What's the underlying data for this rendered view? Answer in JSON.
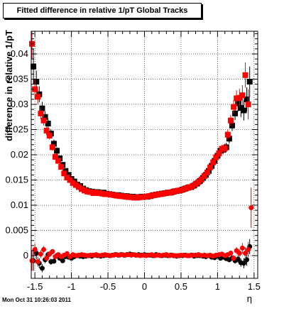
{
  "page": {
    "timestamp": "Mon Oct 31 10:26:03 2011"
  },
  "chart_data": {
    "type": "scatter",
    "title": "Fitted difference in relative 1/pT  Global Tracks",
    "xlabel": "η",
    "ylabel": "difference in relative 1/pT",
    "xlim": [
      -1.55,
      1.55
    ],
    "ylim": [
      -0.0045,
      0.0445
    ],
    "grid": true,
    "x_ticks": [
      {
        "value": -1.5,
        "label": "-1.5"
      },
      {
        "value": -1.0,
        "label": "-1"
      },
      {
        "value": -0.5,
        "label": "-0.5"
      },
      {
        "value": 0.0,
        "label": "0"
      },
      {
        "value": 0.5,
        "label": "0.5"
      },
      {
        "value": 1.0,
        "label": "1"
      },
      {
        "value": 1.5,
        "label": "1.5"
      }
    ],
    "y_ticks": [
      {
        "value": 0.0,
        "label": "0"
      },
      {
        "value": 0.005,
        "label": "0.005"
      },
      {
        "value": 0.01,
        "label": "0.01"
      },
      {
        "value": 0.015,
        "label": "0.015"
      },
      {
        "value": 0.02,
        "label": "0.02"
      },
      {
        "value": 0.025,
        "label": "0.025"
      },
      {
        "value": 0.03,
        "label": "0.03"
      },
      {
        "value": 0.035,
        "label": "0.035"
      },
      {
        "value": 0.04,
        "label": "0.04"
      }
    ],
    "colors": {
      "black_series": "#000000",
      "red_series": "#ff0000"
    },
    "series": [
      {
        "marker": "square",
        "color": "#000000",
        "x": [
          -1.52,
          -1.48,
          -1.44,
          -1.4,
          -1.36,
          -1.32,
          -1.28,
          -1.24,
          -1.2,
          -1.16,
          -1.12,
          -1.08,
          -1.04,
          -1.0,
          -0.96,
          -0.92,
          -0.88,
          -0.84,
          -0.8,
          -0.76,
          -0.72,
          -0.68,
          -0.64,
          -0.6,
          -0.56,
          -0.52,
          -0.48,
          -0.44,
          -0.4,
          -0.36,
          -0.32,
          -0.28,
          -0.24,
          -0.2,
          -0.16,
          -0.12,
          -0.08,
          -0.04,
          0.0,
          0.04,
          0.08,
          0.12,
          0.16,
          0.2,
          0.24,
          0.28,
          0.32,
          0.36,
          0.4,
          0.44,
          0.48,
          0.52,
          0.56,
          0.6,
          0.64,
          0.68,
          0.72,
          0.76,
          0.8,
          0.84,
          0.88,
          0.92,
          0.96,
          1.0,
          1.04,
          1.08,
          1.12,
          1.16,
          1.2,
          1.24,
          1.28,
          1.32,
          1.36,
          1.4,
          1.44
        ],
        "y": [
          0.0375,
          0.0345,
          0.032,
          0.0292,
          0.0275,
          0.0262,
          0.0242,
          0.0222,
          0.0208,
          0.0193,
          0.018,
          0.0168,
          0.016,
          0.0152,
          0.0147,
          0.0141,
          0.0138,
          0.0133,
          0.013,
          0.0128,
          0.0127,
          0.0126,
          0.0126,
          0.0124,
          0.0125,
          0.0123,
          0.0122,
          0.0121,
          0.012,
          0.012,
          0.0119,
          0.0118,
          0.0118,
          0.0117,
          0.0117,
          0.0116,
          0.0116,
          0.0117,
          0.0117,
          0.0117,
          0.0118,
          0.012,
          0.0121,
          0.0122,
          0.0123,
          0.0124,
          0.0125,
          0.0125,
          0.0127,
          0.0128,
          0.0129,
          0.0131,
          0.0133,
          0.0135,
          0.0136,
          0.0139,
          0.0143,
          0.0148,
          0.0154,
          0.016,
          0.0168,
          0.0178,
          0.0188,
          0.0198,
          0.0208,
          0.021,
          0.0215,
          0.0232,
          0.0258,
          0.0282,
          0.0302,
          0.0293,
          0.0288,
          0.031,
          0.0345
        ],
        "err": [
          0.0035,
          0.0022,
          0.0016,
          0.0013,
          0.0011,
          0.001,
          0.0009,
          0.0008,
          0.0007,
          0.0006,
          0.0005,
          0.0005,
          0.0004,
          0.0004,
          0.0004,
          0.0003,
          0.0003,
          0.0003,
          0.0003,
          0.0003,
          0.0003,
          0.0003,
          0.0003,
          0.0003,
          0.0003,
          0.0003,
          0.0003,
          0.0003,
          0.0003,
          0.0003,
          0.0003,
          0.0003,
          0.0003,
          0.0003,
          0.0003,
          0.0003,
          0.0003,
          0.0003,
          0.0003,
          0.0003,
          0.0003,
          0.0003,
          0.0003,
          0.0003,
          0.0003,
          0.0003,
          0.0003,
          0.0003,
          0.0003,
          0.0003,
          0.0003,
          0.0003,
          0.0003,
          0.0003,
          0.0003,
          0.0003,
          0.0003,
          0.0003,
          0.0004,
          0.0004,
          0.0004,
          0.0005,
          0.0005,
          0.0006,
          0.0007,
          0.0008,
          0.0009,
          0.001,
          0.0011,
          0.0013,
          0.0016,
          0.0018,
          0.002,
          0.0024,
          0.003
        ]
      },
      {
        "marker": "square",
        "color": "#ff0000",
        "x": [
          -1.54,
          -1.5,
          -1.46,
          -1.42,
          -1.38,
          -1.34,
          -1.3,
          -1.26,
          -1.22,
          -1.18,
          -1.14,
          -1.1,
          -1.06,
          -1.02,
          -0.98,
          -0.94,
          -0.9,
          -0.86,
          -0.82,
          -0.78,
          -0.74,
          -0.7,
          -0.66,
          -0.62,
          -0.58,
          -0.54,
          -0.5,
          -0.46,
          -0.42,
          -0.38,
          -0.34,
          -0.3,
          -0.26,
          -0.22,
          -0.18,
          -0.14,
          -0.1,
          -0.06,
          -0.02,
          0.02,
          0.06,
          0.1,
          0.14,
          0.18,
          0.22,
          0.26,
          0.3,
          0.34,
          0.38,
          0.42,
          0.46,
          0.5,
          0.54,
          0.58,
          0.62,
          0.66,
          0.7,
          0.74,
          0.78,
          0.82,
          0.86,
          0.9,
          0.94,
          0.98,
          1.02,
          1.06,
          1.1,
          1.14,
          1.18,
          1.22,
          1.26,
          1.3,
          1.34,
          1.38,
          1.42
        ],
        "y": [
          0.042,
          0.033,
          0.0315,
          0.0282,
          0.0268,
          0.0248,
          0.0238,
          0.0215,
          0.0196,
          0.0188,
          0.0176,
          0.0163,
          0.0155,
          0.015,
          0.0144,
          0.014,
          0.0136,
          0.0132,
          0.0129,
          0.0127,
          0.0126,
          0.0124,
          0.0125,
          0.0124,
          0.0123,
          0.0122,
          0.0122,
          0.0121,
          0.012,
          0.0119,
          0.0118,
          0.0118,
          0.0117,
          0.0116,
          0.0116,
          0.0115,
          0.0115,
          0.0116,
          0.0116,
          0.0117,
          0.0118,
          0.0119,
          0.012,
          0.0121,
          0.0122,
          0.0123,
          0.0124,
          0.0125,
          0.0126,
          0.0128,
          0.0129,
          0.013,
          0.0132,
          0.0134,
          0.0136,
          0.0138,
          0.0142,
          0.0146,
          0.0151,
          0.0158,
          0.0165,
          0.0175,
          0.0185,
          0.0195,
          0.0203,
          0.0212,
          0.0213,
          0.024,
          0.0268,
          0.0295,
          0.0312,
          0.0313,
          0.0318,
          0.0358,
          0.03
        ],
        "err": [
          0.003,
          0.002,
          0.0015,
          0.0012,
          0.001,
          0.0009,
          0.0008,
          0.0007,
          0.0006,
          0.0006,
          0.0005,
          0.0005,
          0.0004,
          0.0004,
          0.0004,
          0.0003,
          0.0003,
          0.0003,
          0.0003,
          0.0003,
          0.0003,
          0.0003,
          0.0003,
          0.0003,
          0.0003,
          0.0003,
          0.0003,
          0.0003,
          0.0003,
          0.0003,
          0.0003,
          0.0003,
          0.0003,
          0.0003,
          0.0003,
          0.0003,
          0.0003,
          0.0003,
          0.0003,
          0.0003,
          0.0003,
          0.0003,
          0.0003,
          0.0003,
          0.0003,
          0.0003,
          0.0003,
          0.0003,
          0.0003,
          0.0003,
          0.0003,
          0.0003,
          0.0003,
          0.0003,
          0.0003,
          0.0003,
          0.0003,
          0.0003,
          0.0004,
          0.0004,
          0.0004,
          0.0005,
          0.0005,
          0.0006,
          0.0007,
          0.0008,
          0.0009,
          0.001,
          0.0011,
          0.0013,
          0.0016,
          0.0018,
          0.002,
          0.0025,
          0.003
        ]
      },
      {
        "marker": "circle",
        "color": "#000000",
        "x": [
          -1.52,
          -1.48,
          -1.44,
          -1.4,
          -1.36,
          -1.32,
          -1.28,
          -1.24,
          -1.2,
          -1.16,
          -1.12,
          -1.08,
          -1.04,
          -1.0,
          -0.96,
          -0.92,
          -0.88,
          -0.84,
          -0.8,
          -0.76,
          -0.72,
          -0.68,
          -0.64,
          -0.6,
          -0.56,
          -0.52,
          -0.48,
          -0.44,
          -0.4,
          -0.36,
          -0.32,
          -0.28,
          -0.24,
          -0.2,
          -0.16,
          -0.12,
          -0.08,
          -0.04,
          0.0,
          0.04,
          0.08,
          0.12,
          0.16,
          0.2,
          0.24,
          0.28,
          0.32,
          0.36,
          0.4,
          0.44,
          0.48,
          0.52,
          0.56,
          0.6,
          0.64,
          0.68,
          0.72,
          0.76,
          0.8,
          0.84,
          0.88,
          0.92,
          0.96,
          1.0,
          1.04,
          1.08,
          1.12,
          1.16,
          1.2,
          1.24,
          1.28,
          1.32,
          1.36,
          1.4,
          1.44
        ],
        "y": [
          -0.001,
          0.0005,
          -0.0015,
          -0.0025,
          -0.0008,
          0.0002,
          -0.0012,
          -0.0011,
          0.0,
          -0.0005,
          -0.001,
          -0.0002,
          -0.0003,
          -0.0005,
          -0.0002,
          0.0,
          -0.0001,
          -0.0002,
          -0.0001,
          0.0,
          -0.0001,
          0.0001,
          0.0,
          -0.0001,
          0.0,
          0.0001,
          0.0,
          0.0001,
          0.0002,
          0.0001,
          0.0002,
          0.0001,
          0.0002,
          0.0003,
          0.0002,
          0.0001,
          0.0002,
          0.0001,
          0.0002,
          0.0001,
          0.0001,
          0.0,
          0.0002,
          0.0001,
          0.0,
          0.0001,
          0.0,
          0.0001,
          0.0,
          -0.0001,
          0.0,
          0.0,
          0.0001,
          0.0,
          0.0001,
          -0.0001,
          0.0,
          0.0,
          -0.0001,
          -0.0002,
          0.0,
          -0.0003,
          -0.0004,
          -0.0001,
          -0.0005,
          -0.0003,
          -0.0006,
          -0.0008,
          -0.0005,
          -0.001,
          -0.0007,
          -0.0014,
          -0.0015,
          -0.0008,
          0.0018
        ],
        "err": [
          0.002,
          0.0012,
          0.001,
          0.0008,
          0.0007,
          0.0006,
          0.0006,
          0.0005,
          0.0004,
          0.0004,
          0.0004,
          0.0003,
          0.0003,
          0.0003,
          0.0003,
          0.0002,
          0.0002,
          0.0002,
          0.0002,
          0.0002,
          0.0002,
          0.0002,
          0.0002,
          0.0002,
          0.0002,
          0.0002,
          0.0002,
          0.0002,
          0.0002,
          0.0002,
          0.0002,
          0.0002,
          0.0002,
          0.0002,
          0.0002,
          0.0002,
          0.0002,
          0.0002,
          0.0002,
          0.0002,
          0.0002,
          0.0002,
          0.0002,
          0.0002,
          0.0002,
          0.0002,
          0.0002,
          0.0002,
          0.0002,
          0.0002,
          0.0002,
          0.0002,
          0.0002,
          0.0002,
          0.0002,
          0.0002,
          0.0002,
          0.0002,
          0.0002,
          0.0002,
          0.0002,
          0.0003,
          0.0003,
          0.0003,
          0.0003,
          0.0004,
          0.0004,
          0.0005,
          0.0005,
          0.0006,
          0.0007,
          0.0008,
          0.001,
          0.0012,
          0.0015
        ]
      },
      {
        "marker": "circle",
        "color": "#ff0000",
        "x": [
          -1.54,
          -1.5,
          -1.46,
          -1.42,
          -1.38,
          -1.34,
          -1.3,
          -1.26,
          -1.22,
          -1.18,
          -1.14,
          -1.1,
          -1.06,
          -1.02,
          -0.98,
          -0.94,
          -0.9,
          -0.86,
          -0.82,
          -0.78,
          -0.74,
          -0.7,
          -0.66,
          -0.62,
          -0.58,
          -0.54,
          -0.5,
          -0.46,
          -0.42,
          -0.38,
          -0.34,
          -0.3,
          -0.26,
          -0.22,
          -0.18,
          -0.14,
          -0.1,
          -0.06,
          -0.02,
          0.02,
          0.06,
          0.1,
          0.14,
          0.18,
          0.22,
          0.26,
          0.3,
          0.34,
          0.38,
          0.42,
          0.46,
          0.5,
          0.54,
          0.58,
          0.62,
          0.66,
          0.7,
          0.74,
          0.78,
          0.82,
          0.86,
          0.9,
          0.94,
          0.98,
          1.02,
          1.06,
          1.1,
          1.14,
          1.18,
          1.22,
          1.26,
          1.3,
          1.34,
          1.38,
          1.42,
          1.46
        ],
        "y": [
          -0.001,
          0.0012,
          -0.0012,
          0.0003,
          0.0012,
          -0.0005,
          0.0003,
          0.0008,
          -0.0002,
          0.0002,
          -0.0002,
          0.0001,
          0.0004,
          -0.0002,
          0.0002,
          0.0,
          0.0001,
          0.0002,
          0.0001,
          0.0,
          0.0001,
          0.0001,
          0.0002,
          0.0,
          0.0001,
          0.0002,
          0.0001,
          0.0,
          0.0001,
          0.0002,
          0.0001,
          0.0002,
          0.0001,
          0.0002,
          0.0001,
          0.0002,
          0.0001,
          0.0,
          0.0001,
          0.0,
          0.0001,
          0.0002,
          0.0,
          0.0001,
          0.0,
          0.0001,
          0.0002,
          0.0,
          0.0001,
          0.0,
          0.0,
          0.0001,
          0.0001,
          0.0,
          0.0,
          0.0001,
          0.0001,
          0.0002,
          0.0,
          0.0001,
          0.0,
          0.0001,
          -0.0001,
          0.0001,
          0.0002,
          0.0003,
          0.0,
          0.0002,
          0.0005,
          -0.0005,
          0.001,
          0.0005,
          0.0015,
          0.0005,
          0.0012,
          0.0095
        ],
        "err": [
          0.002,
          0.0012,
          0.001,
          0.0008,
          0.0007,
          0.0006,
          0.0006,
          0.0005,
          0.0004,
          0.0004,
          0.0004,
          0.0003,
          0.0003,
          0.0003,
          0.0003,
          0.0002,
          0.0002,
          0.0002,
          0.0002,
          0.0002,
          0.0002,
          0.0002,
          0.0002,
          0.0002,
          0.0002,
          0.0002,
          0.0002,
          0.0002,
          0.0002,
          0.0002,
          0.0002,
          0.0002,
          0.0002,
          0.0002,
          0.0002,
          0.0002,
          0.0002,
          0.0002,
          0.0002,
          0.0002,
          0.0002,
          0.0002,
          0.0002,
          0.0002,
          0.0002,
          0.0002,
          0.0002,
          0.0002,
          0.0002,
          0.0002,
          0.0002,
          0.0002,
          0.0002,
          0.0002,
          0.0002,
          0.0002,
          0.0002,
          0.0002,
          0.0002,
          0.0002,
          0.0002,
          0.0003,
          0.0003,
          0.0003,
          0.0003,
          0.0004,
          0.0004,
          0.0005,
          0.0005,
          0.0006,
          0.0007,
          0.0008,
          0.001,
          0.0012,
          0.0015,
          0.004
        ]
      }
    ]
  }
}
